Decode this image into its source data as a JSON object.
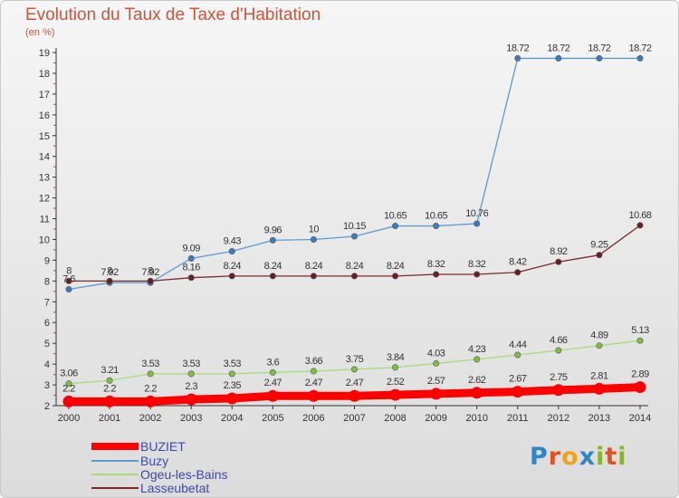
{
  "title": "Evolution du Taux de Taxe d'Habitation",
  "subtitle": "(en %)",
  "logo": {
    "text": "Proxiti",
    "letters": [
      {
        "ch": "P",
        "color": "#2f86c7"
      },
      {
        "ch": "r",
        "color": "#e3521d"
      },
      {
        "ch": "o",
        "color": "#f1a21b"
      },
      {
        "ch": "x",
        "color": "#2f86c7"
      },
      {
        "ch": "i",
        "color": "#86b826"
      },
      {
        "ch": "t",
        "color": "#e3521d"
      },
      {
        "ch": "i",
        "color": "#86b826"
      }
    ]
  },
  "chart_data": {
    "type": "line",
    "title": "Evolution du Taux de Taxe d'Habitation",
    "ylabel": "(en %)",
    "xlabel": "",
    "x": [
      "2000",
      "2001",
      "2002",
      "2003",
      "2004",
      "2005",
      "2006",
      "2007",
      "2008",
      "2009",
      "2010",
      "2011",
      "2012",
      "2013",
      "2014"
    ],
    "ylim": [
      2,
      19
    ],
    "yticks": [
      2,
      3,
      4,
      5,
      6,
      7,
      8,
      9,
      10,
      11,
      12,
      13,
      14,
      15,
      16,
      17,
      18,
      19
    ],
    "grid": false,
    "legend_position": "bottom-left",
    "series": [
      {
        "name": "Buzy",
        "color": "#5b9bd5",
        "marker": "#3a7dbf",
        "values": [
          7.6,
          7.92,
          7.92,
          9.09,
          9.43,
          9.96,
          10,
          10.15,
          10.65,
          10.65,
          10.76,
          18.72,
          18.72,
          18.72,
          18.72
        ],
        "labels": [
          "7.6",
          "7.92",
          "7.92",
          "9.09",
          "9.43",
          "9.96",
          "10",
          "10.15",
          "10.65",
          "10.65",
          "10.76",
          "18.72",
          "18.72",
          "18.72",
          "18.72"
        ]
      },
      {
        "name": "Lasseubetat",
        "color": "#7a2a2a",
        "marker": "#6a1f1f",
        "values": [
          8,
          8,
          8,
          8.16,
          8.24,
          8.24,
          8.24,
          8.24,
          8.24,
          8.32,
          8.32,
          8.42,
          8.92,
          9.25,
          10.68
        ],
        "labels": [
          "8",
          "8",
          "8",
          "8.16",
          "8.24",
          "8.24",
          "8.24",
          "8.24",
          "8.24",
          "8.32",
          "8.32",
          "8.42",
          "8.92",
          "9.25",
          "10.68"
        ]
      },
      {
        "name": "Ogeu-les-Bains",
        "color": "#a6dd7a",
        "marker": "#7cc242",
        "values": [
          3.06,
          3.21,
          3.53,
          3.53,
          3.53,
          3.6,
          3.66,
          3.75,
          3.84,
          4.03,
          4.23,
          4.44,
          4.66,
          4.89,
          5.13
        ],
        "labels": [
          "3.06",
          "3.21",
          "3.53",
          "3.53",
          "3.53",
          "3.6",
          "3.66",
          "3.75",
          "3.84",
          "4.03",
          "4.23",
          "4.44",
          "4.66",
          "4.89",
          "5.13"
        ]
      },
      {
        "name": "BUZIET",
        "color": "#ff0000",
        "marker": "#ff0000",
        "values": [
          2.2,
          2.2,
          2.2,
          2.3,
          2.35,
          2.47,
          2.47,
          2.47,
          2.52,
          2.57,
          2.62,
          2.67,
          2.75,
          2.81,
          2.89
        ],
        "labels": [
          "2.2",
          "2.2",
          "2.2",
          "2.3",
          "2.35",
          "2.47",
          "2.47",
          "2.47",
          "2.52",
          "2.57",
          "2.62",
          "2.67",
          "2.75",
          "2.81",
          "2.89"
        ]
      }
    ],
    "legend": [
      {
        "name": "BUZIET",
        "color": "#ff0000"
      },
      {
        "name": "Buzy",
        "color": "#5b9bd5"
      },
      {
        "name": "Ogeu-les-Bains",
        "color": "#a6dd7a"
      },
      {
        "name": "Lasseubetat",
        "color": "#7a2a2a"
      }
    ]
  }
}
